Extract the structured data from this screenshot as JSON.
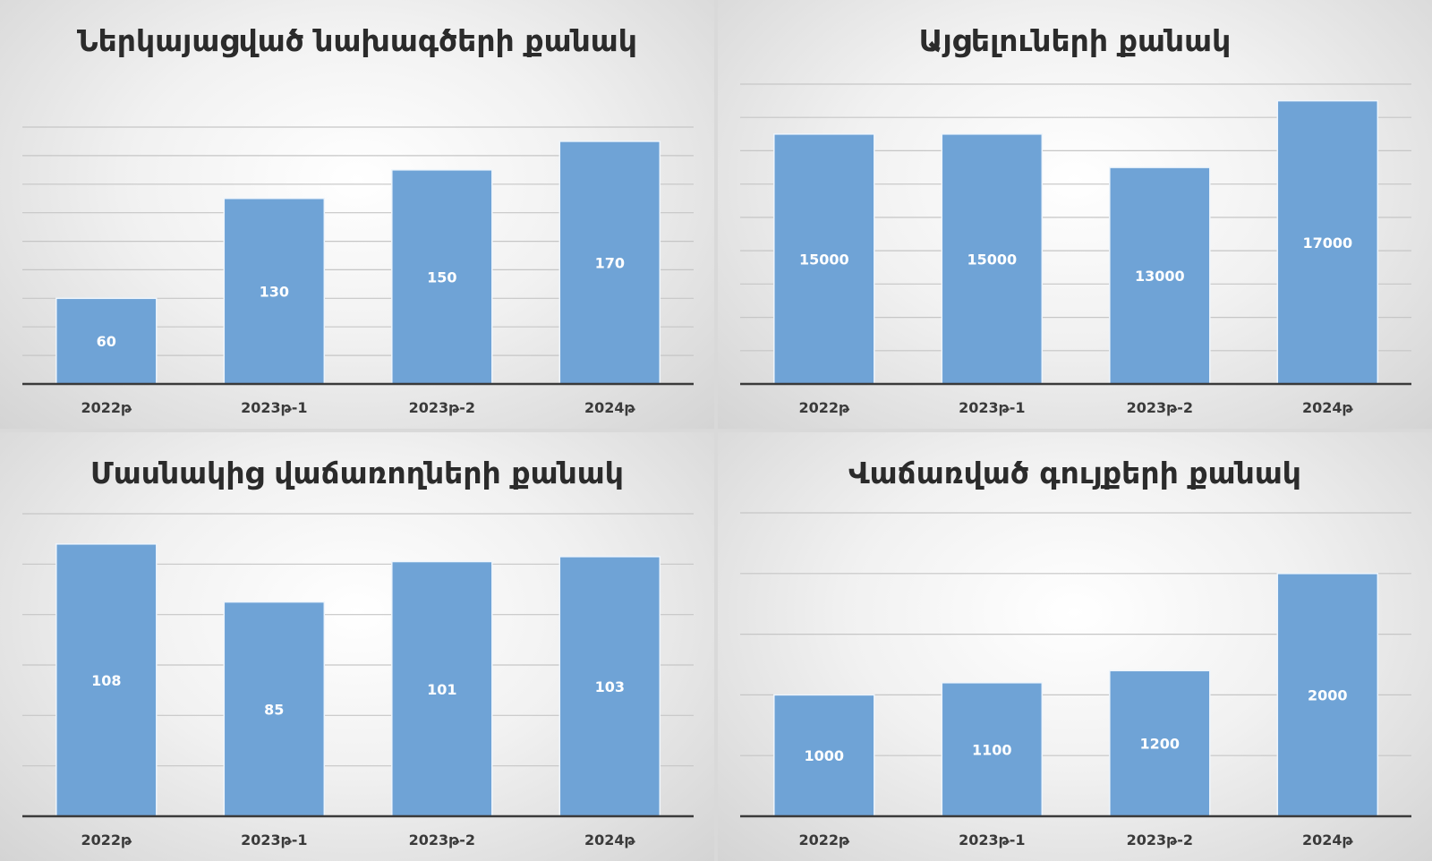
{
  "colors": {
    "bar": "#6fa3d6",
    "axis": "#3a3a3a",
    "gridline": "#c6c6c6"
  },
  "chart_data": [
    {
      "type": "bar",
      "title": "Ներկայացված նախագծերի քանակ",
      "categories": [
        "2022թ",
        "2023թ-1",
        "2023թ-2",
        "2024թ"
      ],
      "values": [
        60,
        130,
        150,
        170
      ],
      "ylim": [
        0,
        180
      ],
      "grid": true,
      "data_labels": true
    },
    {
      "type": "bar",
      "title": "Այցելուների քանակ",
      "categories": [
        "2022թ",
        "2023թ-1",
        "2023թ-2",
        "2024թ"
      ],
      "values": [
        15000,
        15000,
        13000,
        17000
      ],
      "ylim": [
        0,
        18000
      ],
      "grid": true,
      "data_labels": true
    },
    {
      "type": "bar",
      "title": "Մասնակից վաճառողների քանակ",
      "categories": [
        "2022թ",
        "2023թ-1",
        "2023թ-2",
        "2024թ"
      ],
      "values": [
        108,
        85,
        101,
        103
      ],
      "ylim": [
        0,
        120
      ],
      "grid": true,
      "data_labels": true
    },
    {
      "type": "bar",
      "title": "Վաճառված գույքերի քանակ",
      "categories": [
        "2022թ",
        "2023թ-1",
        "2023թ-2",
        "2024թ"
      ],
      "values": [
        1000,
        1100,
        1200,
        2000
      ],
      "ylim": [
        0,
        2500
      ],
      "grid": true,
      "data_labels": true
    }
  ]
}
